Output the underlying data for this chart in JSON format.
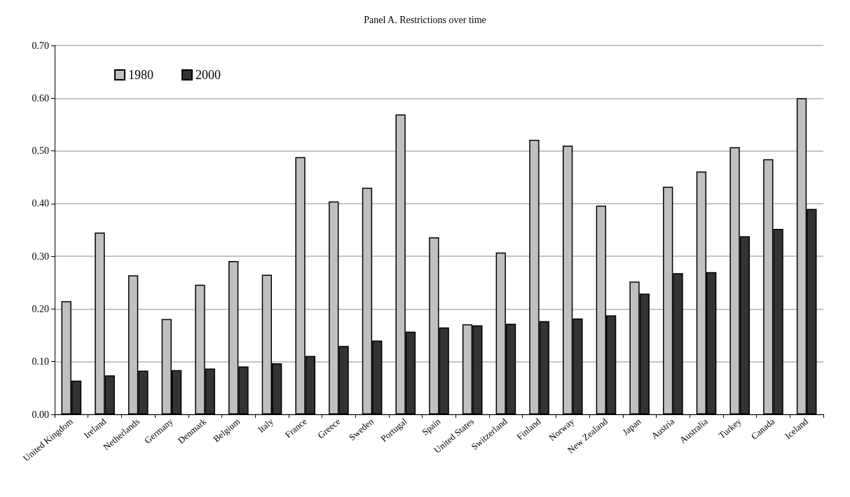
{
  "chart_data": {
    "type": "bar",
    "title": "Panel A. Restrictions over time",
    "categories": [
      "United Kingdom",
      "Ireland",
      "Netherlands",
      "Germany",
      "Denmark",
      "Belgium",
      "Italy",
      "France",
      "Greece",
      "Sweden",
      "Portugal",
      "Spain",
      "United States",
      "Switzerland",
      "Finland",
      "Norway",
      "New Zealand",
      "Japan",
      "Austria",
      "Australia",
      "Turkey",
      "Canada",
      "Iceland"
    ],
    "series": [
      {
        "name": "1980",
        "color": "#c0c0c0",
        "values": [
          0.215,
          0.345,
          0.264,
          0.181,
          0.246,
          0.291,
          0.265,
          0.488,
          0.404,
          0.43,
          0.569,
          0.336,
          0.171,
          0.307,
          0.521,
          0.51,
          0.396,
          0.252,
          0.432,
          0.461,
          0.507,
          0.484,
          0.6
        ]
      },
      {
        "name": "2000",
        "color": "#333333",
        "values": [
          0.064,
          0.074,
          0.083,
          0.084,
          0.087,
          0.091,
          0.097,
          0.111,
          0.13,
          0.14,
          0.157,
          0.165,
          0.169,
          0.172,
          0.177,
          0.182,
          0.188,
          0.229,
          0.268,
          0.27,
          0.338,
          0.352,
          0.39
        ]
      }
    ],
    "ylim": [
      0,
      0.7
    ],
    "yticks": [
      {
        "value": 0,
        "label": "0.00"
      },
      {
        "value": 0.1,
        "label": "0.10"
      },
      {
        "value": 0.2,
        "label": "0.20"
      },
      {
        "value": 0.3,
        "label": "0.30"
      },
      {
        "value": 0.4,
        "label": "0.40"
      },
      {
        "value": 0.5,
        "label": "0.50"
      },
      {
        "value": 0.6,
        "label": "0.60"
      },
      {
        "value": 0.7,
        "label": "0.70"
      }
    ],
    "grid": "y",
    "legend": "top left"
  }
}
